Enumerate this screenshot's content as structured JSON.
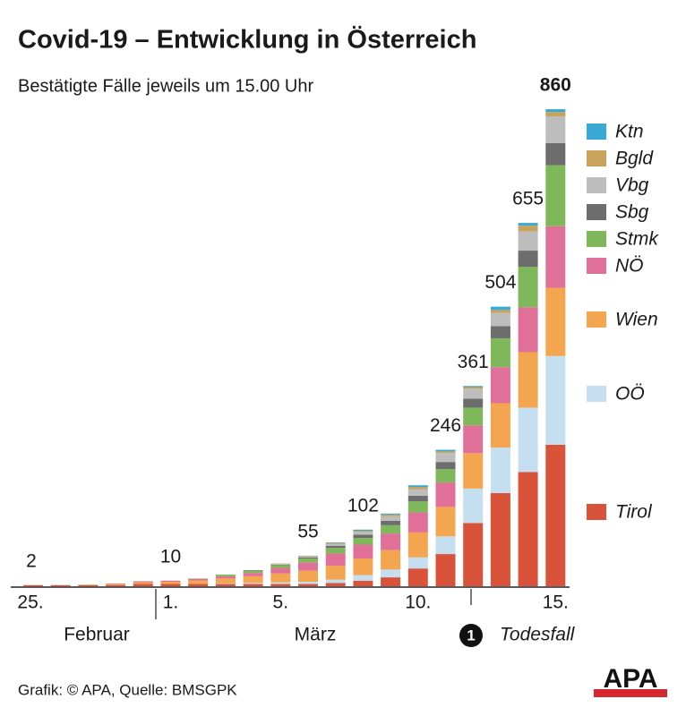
{
  "chart_data": {
    "type": "stacked_bar",
    "title": "Covid-19 – Entwicklung in Österreich",
    "subtitle": "Bestätigte Fälle jeweils um 15.00 Uhr",
    "categories": [
      "25.",
      null,
      null,
      null,
      null,
      "1.",
      null,
      null,
      null,
      "5.",
      null,
      null,
      null,
      null,
      "10.",
      null,
      null,
      null,
      null,
      "15."
    ],
    "totals": [
      2,
      null,
      null,
      null,
      null,
      10,
      null,
      null,
      null,
      null,
      55,
      null,
      102,
      null,
      null,
      246,
      361,
      504,
      655,
      860
    ],
    "series": [
      {
        "name": "Tirol",
        "color": "#d9533a",
        "values": [
          2,
          2,
          2,
          2,
          4,
          4,
          4,
          4,
          4,
          4,
          4,
          6,
          10,
          16,
          32,
          58,
          114,
          168,
          206,
          255
        ]
      },
      {
        "name": "OÖ",
        "color": "#c5dff0",
        "values": [
          0,
          0,
          0,
          0,
          0,
          0,
          0,
          1,
          2,
          3,
          4,
          6,
          10,
          14,
          20,
          32,
          62,
          82,
          116,
          160
        ]
      },
      {
        "name": "Wien",
        "color": "#f4a54f",
        "values": [
          0,
          0,
          1,
          2,
          3,
          4,
          6,
          9,
          12,
          16,
          20,
          25,
          30,
          35,
          45,
          53,
          64,
          80,
          100,
          123
        ]
      },
      {
        "name": "NÖ",
        "color": "#e07098",
        "values": [
          0,
          0,
          0,
          1,
          2,
          2,
          3,
          4,
          6,
          10,
          15,
          22,
          25,
          30,
          36,
          44,
          50,
          65,
          81,
          111
        ]
      },
      {
        "name": "Stmk",
        "color": "#7fb85a",
        "values": [
          0,
          0,
          0,
          0,
          0,
          0,
          1,
          3,
          4,
          5,
          7,
          10,
          12,
          15,
          20,
          24,
          32,
          52,
          73,
          110
        ]
      },
      {
        "name": "Sbg",
        "color": "#6d6d6d",
        "values": [
          0,
          0,
          0,
          0,
          0,
          0,
          0,
          0,
          1,
          1,
          2,
          4,
          6,
          8,
          10,
          13,
          16,
          22,
          29,
          40
        ]
      },
      {
        "name": "Vbg",
        "color": "#bdbdbd",
        "values": [
          0,
          0,
          0,
          0,
          0,
          0,
          0,
          0,
          0,
          1,
          2,
          3,
          5,
          8,
          12,
          16,
          18,
          24,
          35,
          48
        ]
      },
      {
        "name": "Bgld",
        "color": "#c9a35a",
        "values": [
          0,
          0,
          0,
          0,
          0,
          0,
          0,
          0,
          0,
          1,
          1,
          2,
          2,
          3,
          4,
          3,
          3,
          5,
          10,
          8
        ]
      },
      {
        "name": "Ktn",
        "color": "#3ba9d6",
        "values": [
          0,
          0,
          0,
          0,
          0,
          0,
          0,
          0,
          0,
          0,
          0,
          1,
          2,
          2,
          3,
          3,
          2,
          6,
          5,
          5
        ]
      }
    ],
    "months": [
      "Februar",
      "März"
    ],
    "annotation": {
      "marker": "1",
      "text": "Todesfall"
    },
    "source": "Grafik: © APA, Quelle: BMSGPK",
    "logo": "APA"
  }
}
